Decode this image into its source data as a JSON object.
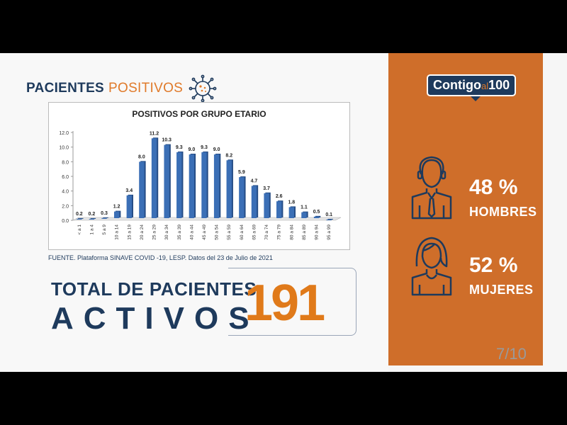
{
  "header": {
    "title_bold": "PACIENTES",
    "title_light": "POSITIVOS",
    "icon": "virus-icon"
  },
  "chart_data": {
    "type": "bar",
    "title": "POSITIVOS POR GRUPO ETARIO",
    "categories": [
      "< a 1",
      "1 a 4",
      "5 a 9",
      "10 a 14",
      "15 a 19",
      "20 a 24",
      "25 a 29",
      "30 a 34",
      "35 a 39",
      "40 a 44",
      "45 a 49",
      "50 a 54",
      "55 a 59",
      "60 a 64",
      "65 a 69",
      "70 a 74",
      "75 a 79",
      "80 a 84",
      "85 a 89",
      "90 a 94",
      "95 a 99"
    ],
    "values": [
      0.2,
      0.2,
      0.3,
      1.2,
      3.4,
      8.0,
      11.2,
      10.3,
      9.3,
      9.0,
      9.3,
      9.0,
      8.2,
      5.9,
      4.7,
      3.7,
      2.6,
      1.8,
      1.1,
      0.5,
      0.1
    ],
    "data_labels": [
      "0.2",
      "0.2",
      "0.3",
      "1.2",
      "3.4",
      "8.0",
      "11.2",
      "10.3",
      "9.3",
      "9.0",
      "9.3",
      "9.0",
      "8.2",
      "5.9",
      "4.7",
      "3.7",
      "2.6",
      "1.8",
      "1.1",
      "0.5",
      "0.1"
    ],
    "ylim": [
      0,
      12
    ],
    "yticks": [
      "0.0",
      "2.0",
      "4.0",
      "6.0",
      "8.0",
      "10.0",
      "12.0"
    ],
    "xlabel": "",
    "ylabel": "",
    "grid": false,
    "bar_color": "#3b6fb6"
  },
  "source": "FUENTE. Plataforma SINAVE COVID -19, LESP. Datos del 23 de Julio de 2021",
  "total": {
    "line1": "TOTAL DE PACIENTES",
    "line2": "ACTIVOS",
    "value": "191"
  },
  "brand": {
    "logo_left": "Contigo",
    "logo_mid": "al",
    "logo_right": "100"
  },
  "stats": [
    {
      "pct": "48 %",
      "label": "HOMBRES",
      "icon": "man-icon"
    },
    {
      "pct": "52 %",
      "label": "MUJERES",
      "icon": "woman-icon"
    }
  ],
  "page": "7/10",
  "colors": {
    "navy": "#1e3a5c",
    "orange": "#cf6e2a",
    "accent": "#e07a1a"
  }
}
